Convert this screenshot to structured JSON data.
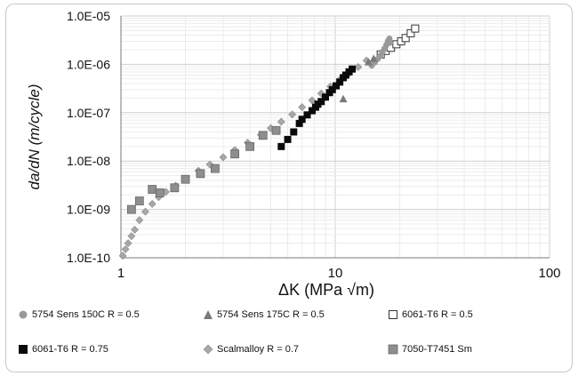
{
  "chart_data": {
    "type": "scatter",
    "xlabel": "ΔK (MPa √m)",
    "ylabel": "da/dN (m/cycle)",
    "xscale": "log",
    "yscale": "log",
    "xlim": [
      1,
      100
    ],
    "ylim": [
      1e-10,
      1e-05
    ],
    "x_ticks": [
      "1",
      "10",
      "100"
    ],
    "y_ticks": [
      "1.0E-10",
      "1.0E-09",
      "1.0E-08",
      "1.0E-07",
      "1.0E-06",
      "1.0E-05"
    ],
    "grid": true,
    "legend_position": "bottom",
    "series": [
      {
        "name": "5754 Sens 150C R = 0.5",
        "marker": "circle",
        "color": "#9a9a9a",
        "x": [
          14.8,
          15.3,
          15.8,
          16.2,
          16.6,
          17.0,
          17.3,
          17.6,
          17.9,
          18.0
        ],
        "y": [
          9.5e-07,
          1.1e-06,
          1.3e-06,
          1.5e-06,
          1.8e-06,
          2.1e-06,
          2.5e-06,
          3e-06,
          3.4e-06,
          2.8e-06
        ]
      },
      {
        "name": "5754 Sens 175C R = 0.5",
        "marker": "triangle",
        "color": "#7a7a7a",
        "x": [
          10.9,
          14.3,
          15.1
        ],
        "y": [
          1.9e-07,
          1.1e-06,
          1.3e-06
        ]
      },
      {
        "name": "6061-T6 R = 0.5",
        "marker": "square-open",
        "color": "#333333",
        "x": [
          16.3,
          17.2,
          18.2,
          19.3,
          20.3,
          21.3,
          22.5,
          23.6
        ],
        "y": [
          1.6e-06,
          1.9e-06,
          2.2e-06,
          2.6e-06,
          3e-06,
          3.5e-06,
          4.4e-06,
          5.5e-06
        ]
      },
      {
        "name": "6061-T6 R = 0.75",
        "marker": "square-filled",
        "color": "#0a0a0a",
        "x": [
          5.6,
          6.0,
          6.4,
          6.8,
          7.0,
          7.4,
          7.8,
          8.1,
          8.3,
          8.6,
          9.0,
          9.4,
          9.7,
          10.1,
          10.5,
          10.9,
          11.2,
          11.6,
          12.0
        ],
        "y": [
          2e-08,
          2.8e-08,
          4e-08,
          6e-08,
          7.3e-08,
          9e-08,
          1.1e-07,
          1.3e-07,
          1.5e-07,
          1.7e-07,
          2.1e-07,
          2.6e-07,
          3e-07,
          3.6e-07,
          4.3e-07,
          5.3e-07,
          6e-07,
          7e-07,
          8e-07
        ]
      },
      {
        "name": "Scalmalloy R = 0.7",
        "marker": "diamond",
        "color": "#a8a8a8",
        "x": [
          1.02,
          1.05,
          1.08,
          1.12,
          1.16,
          1.22,
          1.3,
          1.4,
          1.5,
          1.62,
          1.8,
          2.0,
          2.3,
          2.6,
          3.0,
          3.4,
          3.9,
          4.5,
          5.0,
          5.6,
          6.3,
          7.0,
          7.8,
          8.6,
          9.5,
          10.5,
          11.6,
          12.8,
          14.0
        ],
        "y": [
          1.1e-10,
          1.5e-10,
          2e-10,
          2.8e-10,
          3.8e-10,
          6e-10,
          9e-10,
          1.3e-09,
          1.8e-09,
          2.3e-09,
          3.1e-09,
          4.2e-09,
          6.3e-09,
          8.5e-09,
          1.2e-08,
          1.7e-08,
          2.4e-08,
          3.5e-08,
          4.8e-08,
          6.5e-08,
          9.2e-08,
          1.3e-07,
          1.8e-07,
          2.5e-07,
          3.5e-07,
          4.8e-07,
          6.5e-07,
          8.8e-07,
          1.2e-06
        ]
      },
      {
        "name": "7050-T7451 Sm",
        "marker": "square-gray",
        "color": "#8e8e8e",
        "x": [
          1.12,
          1.22,
          1.4,
          1.52,
          1.78,
          2.0,
          2.35,
          2.75,
          3.4,
          4.0,
          4.6,
          5.3
        ],
        "y": [
          1e-09,
          1.5e-09,
          2.6e-09,
          2.2e-09,
          2.8e-09,
          4.2e-09,
          5.5e-09,
          7e-09,
          1.4e-08,
          2e-08,
          3.4e-08,
          4.3e-08
        ]
      }
    ]
  },
  "legend": {
    "items": [
      {
        "label": "5754 Sens 150C R = 0.5",
        "marker": "circle",
        "color": "#9a9a9a"
      },
      {
        "label": "5754 Sens 175C R = 0.5",
        "marker": "triangle",
        "color": "#7a7a7a"
      },
      {
        "label": "6061-T6 R = 0.5",
        "marker": "square-open",
        "color": "#333333"
      },
      {
        "label": "6061-T6 R = 0.75",
        "marker": "square-filled",
        "color": "#0a0a0a"
      },
      {
        "label": "Scalmalloy R = 0.7",
        "marker": "diamond",
        "color": "#a8a8a8"
      },
      {
        "label": "7050-T7451 Sm",
        "marker": "square-gray",
        "color": "#8e8e8e"
      }
    ]
  }
}
